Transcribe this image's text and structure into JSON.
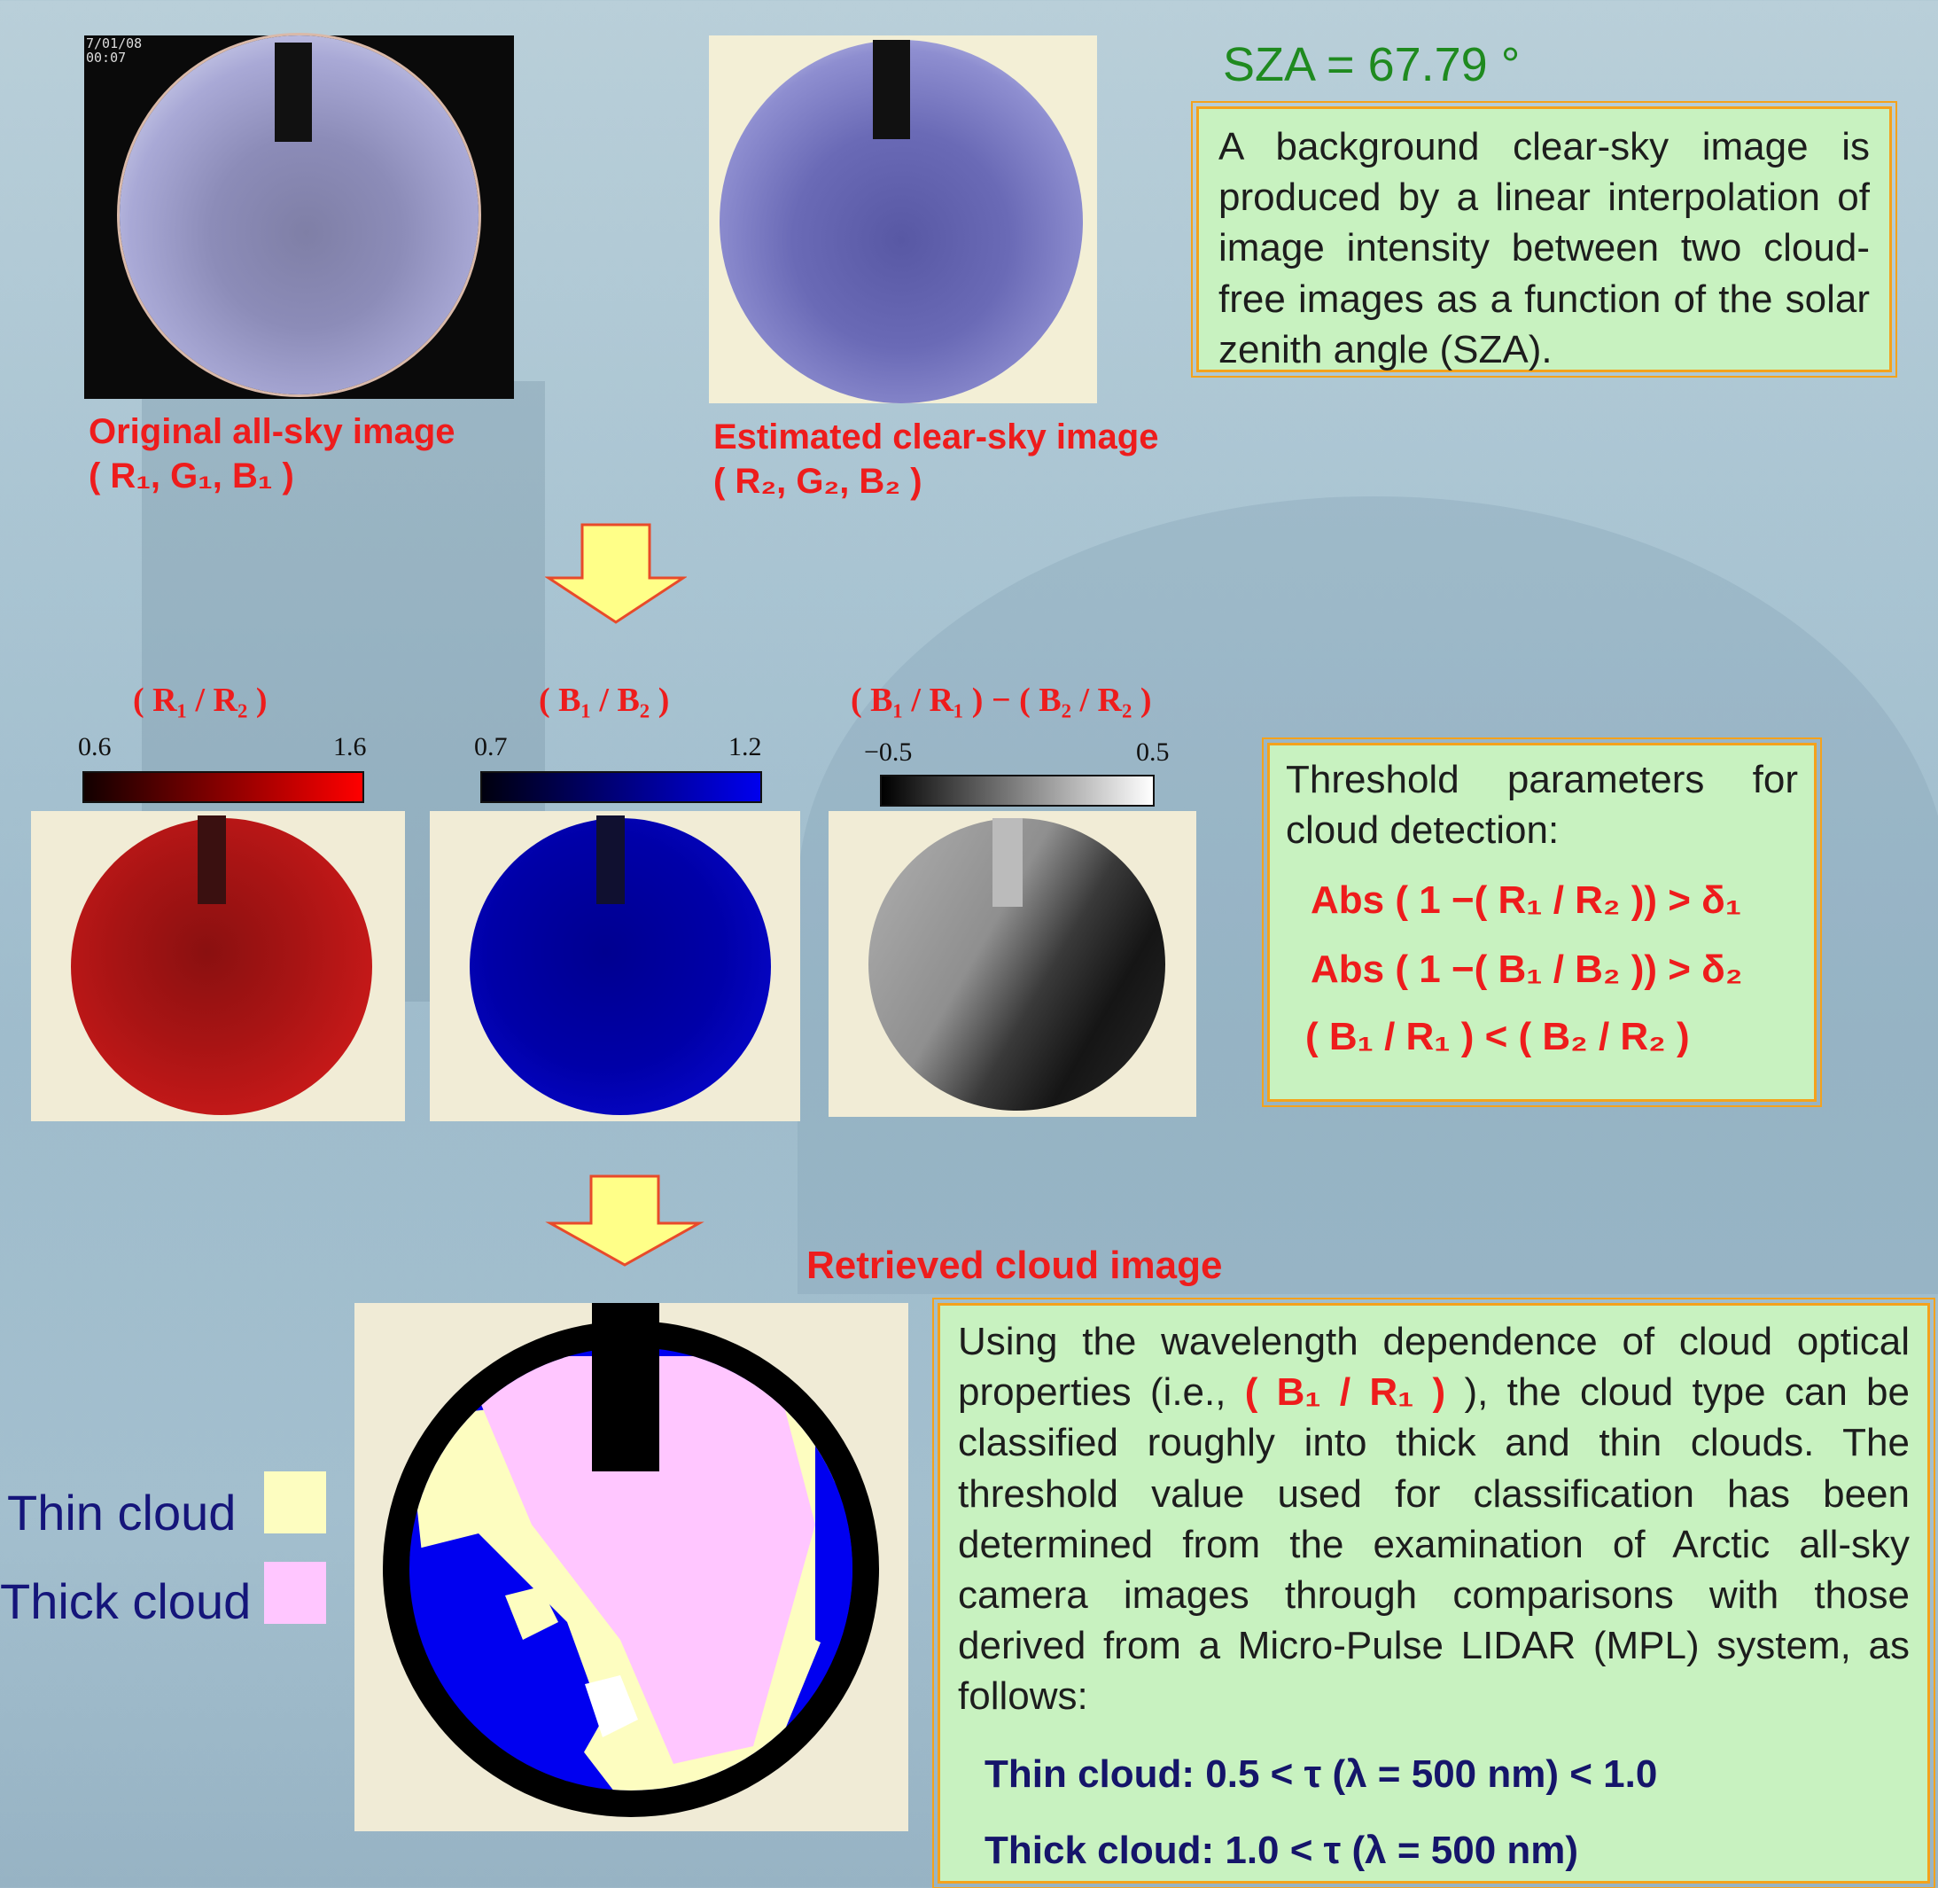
{
  "sza": "SZA = 67.79 °",
  "camera_timestamp": {
    "date": "7/01/08",
    "time": "00:07"
  },
  "top": {
    "original": {
      "caption_line1": "Original all-sky image",
      "caption_line2": "( R₁, G₁, B₁ )"
    },
    "estimated": {
      "caption_line1": "Estimated clear-sky image",
      "caption_line2": "( R₂, G₂, B₂ )"
    },
    "background_text": "A background clear-sky image is produced by a linear interpolation of image intensity between two cloud-free images as a function of the solar zenith angle (SZA)."
  },
  "ratios": [
    {
      "title": "( R₁ / R₂ )",
      "min": "0.6",
      "max": "1.6",
      "color": "#ff0000"
    },
    {
      "title": "( B₁ / B₂ )",
      "min": "0.7",
      "max": "1.2",
      "color": "#0000ee"
    },
    {
      "title": "( B₁ / R₁ ) − ( B₂ / R₂ )",
      "min": "−0.5",
      "max": "0.5",
      "color": "#ffffff"
    }
  ],
  "threshold": {
    "intro": "Threshold parameters for cloud detection:",
    "rule1": "Abs ( 1 −( R₁ / R₂ ))  >  δ₁",
    "rule2": "Abs ( 1 −( B₁ / B₂ ))  >  δ₂",
    "rule3": "( B₁ / R₁ )  <  ( B₂ / R₂ )"
  },
  "retrieved": {
    "caption": "Retrieved cloud image",
    "legend": [
      {
        "label": "Thin cloud",
        "color": "#fdfdc0"
      },
      {
        "label": "Thick cloud",
        "color": "#ffc6ff"
      }
    ]
  },
  "classification": {
    "text_before": "Using the wavelength dependence of cloud optical properties (i.e., ",
    "highlight": "( B₁ / R₁ )",
    "text_after": " ), the cloud type can be classified roughly into thick and thin clouds. The threshold value used for classification has been determined from the examination of Arctic all-sky camera images through comparisons with those derived from a Micro-Pulse LIDAR (MPL) system, as follows:",
    "thin": "Thin cloud:  0.5 < τ (λ = 500 nm) < 1.0",
    "thick": "Thick cloud:  1.0 < τ (λ = 500 nm)"
  }
}
